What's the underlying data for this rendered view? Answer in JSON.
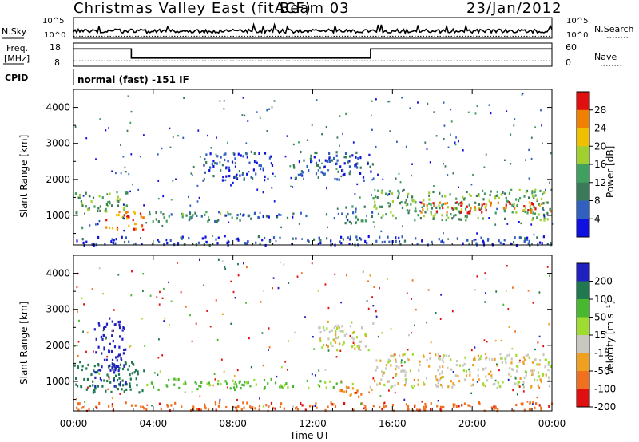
{
  "header": {
    "title": "Christmas Valley East (fitACF)",
    "beam": "Beam 03",
    "date": "23/Jan/2012"
  },
  "strips": {
    "noise": {
      "left_label": "N.Sky",
      "right_label": "N.Search",
      "left_ticks": [
        "10^5",
        "10^0"
      ],
      "right_ticks": [
        "10^5",
        "10^0"
      ]
    },
    "freq": {
      "left_label_1": "Freq.",
      "left_label_2": "[MHz]",
      "right_label": "Nave",
      "left_ticks": [
        "18",
        "8"
      ],
      "right_ticks": [
        "60",
        "0"
      ]
    },
    "cpid": {
      "left_label": "CPID",
      "text": "normal (fast) -151 IF"
    }
  },
  "panels": [
    {
      "name": "power",
      "ylabel": "Slant Range [km]",
      "cbar_label": "Power [dB]",
      "cbar_ticks": [
        "28",
        "24",
        "20",
        "16",
        "12",
        "8",
        "4"
      ]
    },
    {
      "name": "velocity",
      "ylabel": "Slant Range [km]",
      "cbar_label": "Velocity [m s⁻¹]",
      "cbar_ticks": [
        "200",
        "100",
        "50",
        "15",
        "-15",
        "-50",
        "-100",
        "-200"
      ]
    }
  ],
  "xaxis": {
    "label": "Time UT",
    "ticks": [
      "00:00",
      "04:00",
      "08:00",
      "12:00",
      "16:00",
      "20:00",
      "00:00"
    ]
  },
  "chart_data": [
    {
      "type": "heatmap",
      "title": "Christmas Valley East (fitACF) Beam 03 23/Jan/2012",
      "xlabel": "Time UT",
      "ylabel": "Slant Range [km]",
      "colorbar": "Power [dB]",
      "x_ticks": [
        "00:00",
        "04:00",
        "08:00",
        "12:00",
        "16:00",
        "20:00",
        "00:00"
      ],
      "y_ticks": [
        1000,
        2000,
        3000,
        4000
      ],
      "xlim_hours": [
        0,
        24
      ],
      "ylim_km": [
        180,
        4500
      ],
      "clim": [
        0,
        30
      ],
      "color_levels": [
        4,
        8,
        12,
        16,
        20,
        24,
        28
      ],
      "color_scale": [
        "#1010e0",
        "#3060c0",
        "#3a7a5a",
        "#40a060",
        "#a0d030",
        "#f0c000",
        "#f08000",
        "#e01010"
      ],
      "regions": [
        {
          "t": [
            0.0,
            2.8
          ],
          "r": [
            1100,
            1700
          ],
          "power": 14
        },
        {
          "t": [
            1.6,
            3.6
          ],
          "r": [
            620,
            1200
          ],
          "power": 26
        },
        {
          "t": [
            3.6,
            9.0
          ],
          "r": [
            850,
            1150
          ],
          "power": 12
        },
        {
          "t": [
            7.5,
            13.5
          ],
          "r": [
            950,
            1100
          ],
          "power": 6
        },
        {
          "t": [
            13.5,
            15.0
          ],
          "r": [
            800,
            1300
          ],
          "power": 10
        },
        {
          "t": [
            15.0,
            24.0
          ],
          "r": [
            900,
            1750
          ],
          "power": 14
        },
        {
          "t": [
            17.0,
            24.0
          ],
          "r": [
            1100,
            1400
          ],
          "power": 28
        },
        {
          "t": [
            6.5,
            10.0
          ],
          "r": [
            2000,
            2800
          ],
          "power": 5
        },
        {
          "t": [
            11.0,
            15.0
          ],
          "r": [
            2000,
            2800
          ],
          "power": 6
        },
        {
          "t": [
            0.0,
            24.0
          ],
          "r": [
            200,
            450
          ],
          "power": 5
        }
      ]
    },
    {
      "type": "heatmap",
      "xlabel": "Time UT",
      "ylabel": "Slant Range [km]",
      "colorbar": "Velocity [m s⁻¹]",
      "x_ticks": [
        "00:00",
        "04:00",
        "08:00",
        "12:00",
        "16:00",
        "20:00",
        "00:00"
      ],
      "y_ticks": [
        1000,
        2000,
        3000,
        4000
      ],
      "xlim_hours": [
        0,
        24
      ],
      "ylim_km": [
        180,
        4500
      ],
      "color_levels": [
        200,
        100,
        50,
        15,
        -15,
        -50,
        -100,
        -200
      ],
      "color_scale": [
        "#2020c0",
        "#207850",
        "#48b830",
        "#9edc30",
        "#c8c8c0",
        "#f0a020",
        "#f07020",
        "#e01010"
      ],
      "regions": [
        {
          "t": [
            0.0,
            3.5
          ],
          "r": [
            700,
            1600
          ],
          "velocity": 130
        },
        {
          "t": [
            1.0,
            2.6
          ],
          "r": [
            900,
            2800
          ],
          "velocity": 250
        },
        {
          "t": [
            3.5,
            10.0
          ],
          "r": [
            800,
            1100
          ],
          "velocity": 60
        },
        {
          "t": [
            10.0,
            14.0
          ],
          "r": [
            850,
            1050
          ],
          "velocity": 50
        },
        {
          "t": [
            12.0,
            15.0
          ],
          "r": [
            1900,
            2700
          ],
          "velocity": 0
        },
        {
          "t": [
            15.0,
            24.0
          ],
          "r": [
            850,
            1800
          ],
          "velocity": 0
        },
        {
          "t": [
            13.0,
            15.0
          ],
          "r": [
            600,
            900
          ],
          "velocity": -40
        },
        {
          "t": [
            0.0,
            24.0
          ],
          "r": [
            200,
            450
          ],
          "velocity": -80
        }
      ]
    },
    {
      "type": "line",
      "name": "noise",
      "left_axis": "N.Sky",
      "right_axis": "N.Search",
      "ylim": [
        "10^0",
        "10^5"
      ],
      "x_hours": [
        0,
        24
      ],
      "sky_level_fraction": 0.35,
      "search_level_fraction": 0.1
    },
    {
      "type": "line",
      "name": "freq_nave",
      "left_axis": "Freq. [MHz]",
      "right_axis": "Nave",
      "freq_ylim": [
        8,
        18
      ],
      "nave_ylim": [
        0,
        60
      ],
      "freq_steps": [
        {
          "t": [
            0.0,
            2.9
          ],
          "value": 15.5
        },
        {
          "t": [
            2.9,
            14.9
          ],
          "value": 11.5
        },
        {
          "t": [
            14.9,
            24.0
          ],
          "value": 15.5
        }
      ],
      "nave_value": 14
    }
  ]
}
